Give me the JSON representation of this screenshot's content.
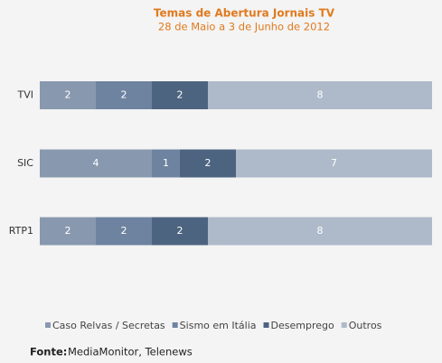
{
  "chart_data": {
    "type": "stacked-bar-horizontal",
    "title": "Temas de Abertura Jornais TV",
    "subtitle": "28 de Maio a 3 de Junho de 2012",
    "categories": [
      "TVI",
      "SIC",
      "RTP1"
    ],
    "series": [
      {
        "name": "Caso Relvas / Secretas",
        "color": "#8898ae",
        "values": [
          2,
          4,
          2
        ]
      },
      {
        "name": "Sismo em Itália",
        "color": "#6e83a0",
        "values": [
          2,
          1,
          2
        ]
      },
      {
        "name": "Desemprego",
        "color": "#4d6480",
        "values": [
          2,
          2,
          2
        ]
      },
      {
        "name": "Outros",
        "color": "#aeb9c9",
        "values": [
          8,
          7,
          8
        ]
      }
    ],
    "xlim": [
      0,
      14
    ],
    "source_label": "Fonte:",
    "source": "MediaMonitor, Telenews"
  }
}
